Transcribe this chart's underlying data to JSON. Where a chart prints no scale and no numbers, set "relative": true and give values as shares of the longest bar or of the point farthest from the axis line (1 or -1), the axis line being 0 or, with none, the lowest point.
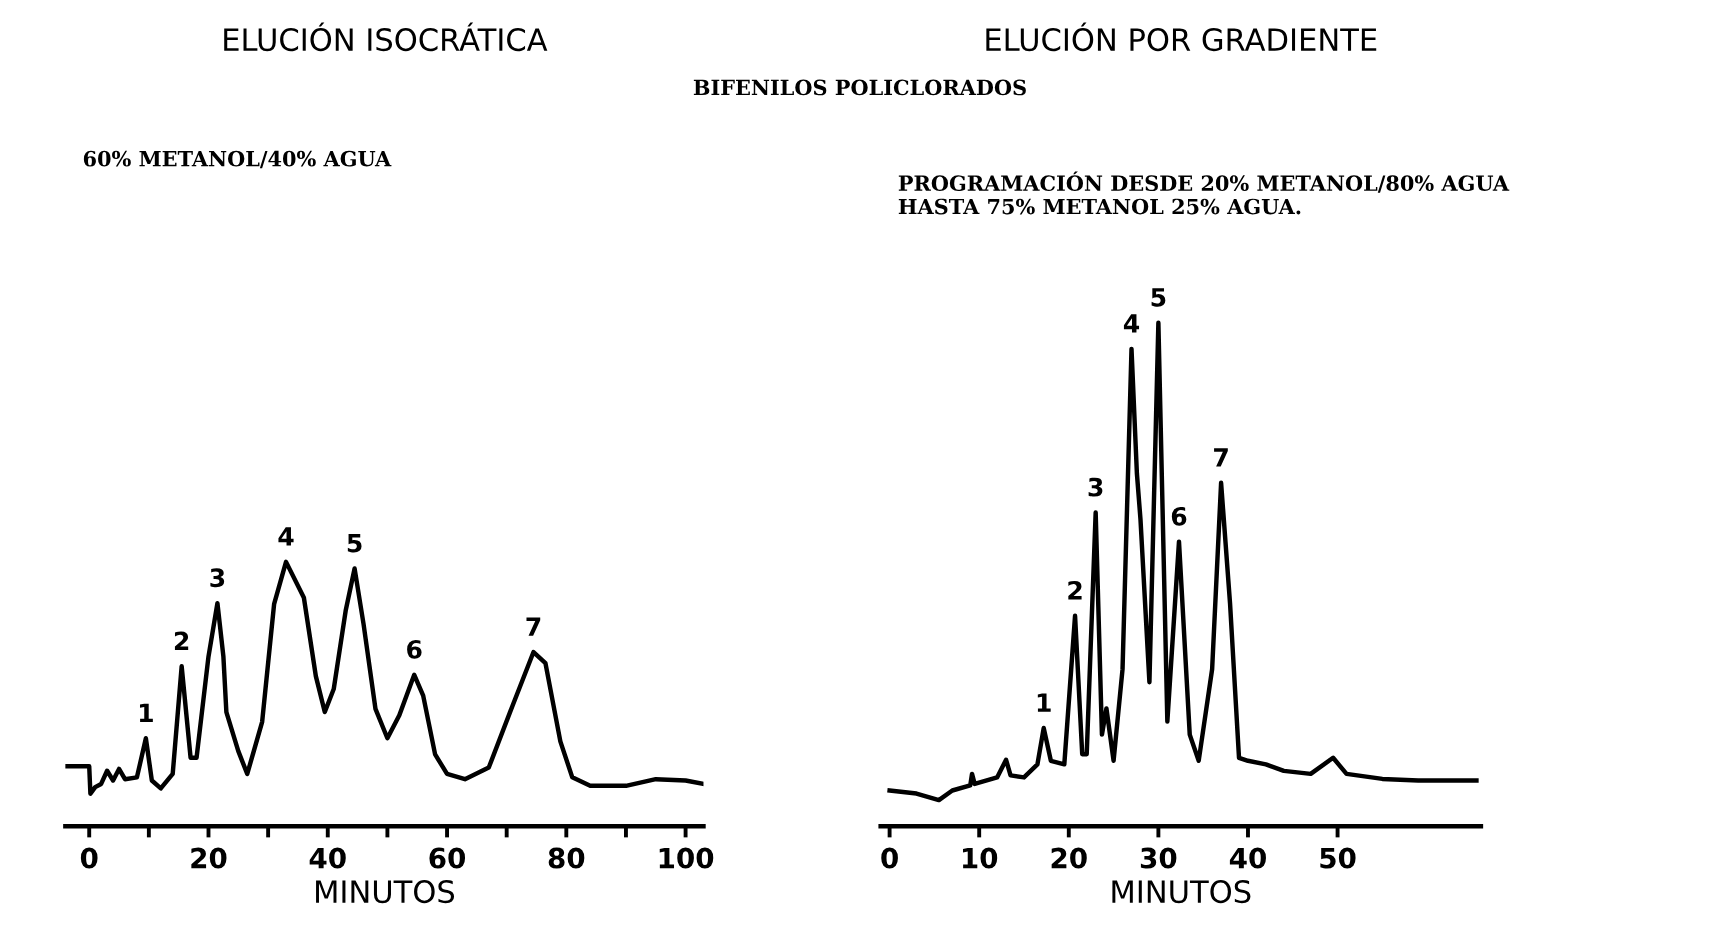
{
  "chart_data": [
    {
      "type": "line",
      "title": "ELUCIÓN ISOCRÁTICA",
      "subtitle": "60% METANOL/40% AGUA",
      "xlabel": "MINUTOS",
      "relative": true,
      "xlim": [
        -4,
        103
      ],
      "xticks": [
        0,
        {
          "value": 10,
          "label": null
        },
        20,
        {
          "value": 30,
          "label": null
        },
        40,
        {
          "value": 50,
          "label": null
        },
        60,
        {
          "value": 70,
          "label": null
        },
        80,
        {
          "value": 90,
          "label": null
        },
        100
      ],
      "tick_labels": "x",
      "grid": false,
      "series": [
        {
          "color": "#000000",
          "x": [
            -4,
            0,
            0.2,
            1,
            2,
            3,
            4,
            5,
            6,
            8,
            9.5,
            10.5,
            12,
            14,
            15.5,
            17,
            18,
            20,
            21.5,
            22.5,
            23,
            25,
            26.5,
            29,
            31,
            33,
            36,
            38,
            39.5,
            41,
            43,
            44.5,
            46,
            48,
            50,
            52,
            54.5,
            56,
            58,
            60,
            63,
            67,
            71,
            74.5,
            76.5,
            79,
            81,
            84,
            90,
            95,
            100,
            103
          ],
          "values": [
            0.227,
            0.227,
            0.123,
            0.148,
            0.16,
            0.21,
            0.173,
            0.217,
            0.178,
            0.185,
            0.333,
            0.173,
            0.143,
            0.198,
            0.605,
            0.259,
            0.259,
            0.642,
            0.844,
            0.642,
            0.432,
            0.284,
            0.198,
            0.395,
            0.84,
            1.0,
            0.864,
            0.568,
            0.432,
            0.519,
            0.815,
            0.975,
            0.765,
            0.444,
            0.333,
            0.42,
            0.573,
            0.494,
            0.272,
            0.198,
            0.178,
            0.222,
            0.457,
            0.659,
            0.617,
            0.321,
            0.185,
            0.153,
            0.153,
            0.178,
            0.173,
            0.16
          ]
        }
      ],
      "annotations": [
        "BIFENILOS POLICLORADOS",
        {
          "text": "1",
          "x": 9.5,
          "y": 0.333
        },
        {
          "text": "2",
          "x": 15.5,
          "y": 0.605
        },
        {
          "text": "3",
          "x": 21.5,
          "y": 0.844
        },
        {
          "text": "4",
          "x": 33,
          "y": 1.0
        },
        {
          "text": "5",
          "x": 44.5,
          "y": 0.975
        },
        {
          "text": "6",
          "x": 54.5,
          "y": 0.573
        },
        {
          "text": "7",
          "x": 74.5,
          "y": 0.659
        }
      ]
    },
    {
      "type": "line",
      "title": "ELUCIÓN POR GRADIENTE",
      "subtitle": "PROGRAMACIÓN DESDE 20% METANOL/80% AGUA\nHASTA 75% METANOL 25% AGUA.",
      "xlabel": "MINUTOS",
      "relative": true,
      "xlim": [
        -1,
        66
      ],
      "xticks": [
        0,
        10,
        20,
        30,
        40,
        50
      ],
      "tick_labels": "x",
      "grid": false,
      "series": [
        {
          "color": "#000000",
          "x": [
            0,
            3,
            5.5,
            7,
            9,
            9.2,
            9.5,
            12,
            13,
            13.5,
            15,
            16.5,
            17.2,
            18,
            19.5,
            20.7,
            21.5,
            22,
            23,
            23.7,
            24.2,
            25,
            26,
            27,
            27.6,
            28,
            29,
            30,
            31,
            32.3,
            33.5,
            34.5,
            36,
            37,
            38,
            39,
            40,
            42,
            44,
            47,
            49.5,
            51,
            55,
            59,
            65.5
          ],
          "values": [
            0.071,
            0.065,
            0.052,
            0.071,
            0.081,
            0.104,
            0.084,
            0.097,
            0.132,
            0.101,
            0.097,
            0.123,
            0.195,
            0.13,
            0.123,
            0.418,
            0.143,
            0.143,
            0.623,
            0.182,
            0.234,
            0.13,
            0.312,
            0.948,
            0.701,
            0.61,
            0.286,
            1.0,
            0.208,
            0.565,
            0.182,
            0.13,
            0.312,
            0.682,
            0.442,
            0.136,
            0.13,
            0.123,
            0.11,
            0.104,
            0.136,
            0.104,
            0.094,
            0.091,
            0.091
          ]
        }
      ],
      "annotations": [
        {
          "text": "1",
          "x": 17.2,
          "y": 0.195
        },
        {
          "text": "2",
          "x": 20.7,
          "y": 0.418
        },
        {
          "text": "3",
          "x": 23,
          "y": 0.623
        },
        {
          "text": "4",
          "x": 27,
          "y": 0.948
        },
        {
          "text": "5",
          "x": 30,
          "y": 1.0
        },
        {
          "text": "6",
          "x": 32.3,
          "y": 0.565
        },
        {
          "text": "7",
          "x": 37,
          "y": 0.682
        }
      ]
    }
  ]
}
